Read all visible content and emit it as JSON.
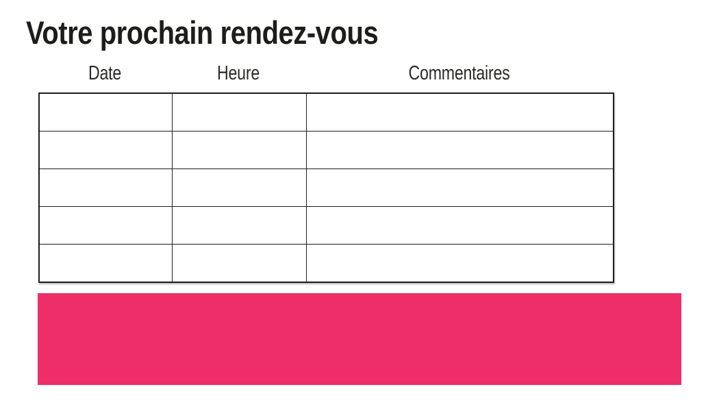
{
  "page": {
    "title": "Votre prochain rendez-vous"
  },
  "table": {
    "columns": [
      {
        "label": "Date"
      },
      {
        "label": "Heure"
      },
      {
        "label": "Commentaires"
      }
    ],
    "row_count": 5,
    "rows": [
      [
        "",
        "",
        ""
      ],
      [
        "",
        "",
        ""
      ],
      [
        "",
        "",
        ""
      ],
      [
        "",
        "",
        ""
      ],
      [
        "",
        "",
        ""
      ]
    ]
  },
  "colors": {
    "accent_pink": "#ED2E68",
    "text": "#1D1D1B",
    "table_border": "#1D1D1B"
  }
}
